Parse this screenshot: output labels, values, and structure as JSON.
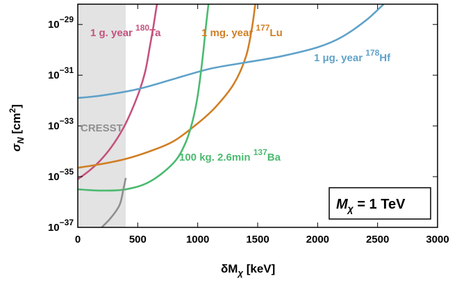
{
  "chart_data": {
    "type": "line",
    "xlabel": {
      "base": "δM",
      "sub": "χ",
      "unit": " [keV]"
    },
    "ylabel": {
      "base": "σ",
      "sub": "N",
      "unit": " [cm",
      "unit_sup": "2",
      "unit_end": "]"
    },
    "xlim": [
      0,
      3000
    ],
    "ylim_log10": [
      -37,
      -28.2
    ],
    "y_scale": "log",
    "x_ticks": [
      {
        "value": 0,
        "label": "0"
      },
      {
        "value": 500,
        "label": "500"
      },
      {
        "value": 1000,
        "label": "1000"
      },
      {
        "value": 1500,
        "label": "1500"
      },
      {
        "value": 2000,
        "label": "2000"
      },
      {
        "value": 2500,
        "label": "2500"
      },
      {
        "value": 3000,
        "label": "3000"
      }
    ],
    "y_ticks": [
      {
        "exp": -37,
        "base": "10",
        "sup": "−37"
      },
      {
        "exp": -35,
        "base": "10",
        "sup": "−35"
      },
      {
        "exp": -33,
        "base": "10",
        "sup": "−33"
      },
      {
        "exp": -31,
        "base": "10",
        "sup": "−31"
      },
      {
        "exp": -29,
        "base": "10",
        "sup": "−29"
      }
    ],
    "shaded_region": {
      "x": [
        0,
        400
      ],
      "color": "#e3e3e3"
    },
    "series": [
      {
        "key": "ta",
        "color": "#c4527e",
        "label": {
          "text": "1 g. year ",
          "sup": "180",
          "tail": "Ta"
        },
        "points": [
          [
            0,
            -35.1
          ],
          [
            100,
            -34.75
          ],
          [
            200,
            -34.3
          ],
          [
            300,
            -33.7
          ],
          [
            400,
            -32.9
          ],
          [
            500,
            -31.8
          ],
          [
            560,
            -30.9
          ],
          [
            600,
            -29.9
          ],
          [
            630,
            -29.1
          ],
          [
            650,
            -28.5
          ],
          [
            660,
            -28.2
          ]
        ]
      },
      {
        "key": "lu",
        "color": "#d07f25",
        "label": {
          "text": "1 mg. year ",
          "sup": "177",
          "tail": "Lu"
        },
        "points": [
          [
            0,
            -34.65
          ],
          [
            200,
            -34.5
          ],
          [
            400,
            -34.3
          ],
          [
            600,
            -34.0
          ],
          [
            800,
            -33.6
          ],
          [
            1000,
            -32.9
          ],
          [
            1150,
            -32.25
          ],
          [
            1300,
            -31.35
          ],
          [
            1400,
            -30.3
          ],
          [
            1450,
            -29.2
          ],
          [
            1480,
            -28.2
          ]
        ]
      },
      {
        "key": "hf",
        "color": "#5fa2c9",
        "label": {
          "text": "1 μg. year ",
          "sup": "178",
          "tail": "Hf"
        },
        "points": [
          [
            0,
            -31.9
          ],
          [
            200,
            -31.8
          ],
          [
            500,
            -31.55
          ],
          [
            800,
            -31.15
          ],
          [
            1100,
            -30.75
          ],
          [
            1400,
            -30.5
          ],
          [
            1700,
            -30.25
          ],
          [
            2000,
            -29.9
          ],
          [
            2200,
            -29.5
          ],
          [
            2400,
            -28.85
          ],
          [
            2550,
            -28.2
          ]
        ]
      },
      {
        "key": "ba",
        "color": "#4bba70",
        "label": {
          "text": "100 kg. 2.6min ",
          "sup": "137",
          "tail": "Ba"
        },
        "points": [
          [
            0,
            -35.5
          ],
          [
            200,
            -35.55
          ],
          [
            400,
            -35.5
          ],
          [
            600,
            -35.2
          ],
          [
            800,
            -34.45
          ],
          [
            900,
            -33.65
          ],
          [
            960,
            -32.75
          ],
          [
            1000,
            -31.8
          ],
          [
            1040,
            -30.35
          ],
          [
            1070,
            -29.0
          ],
          [
            1090,
            -28.2
          ]
        ]
      },
      {
        "key": "cresst",
        "color": "#8f8f8f",
        "label": {
          "text": "CRESST",
          "sup": "",
          "tail": ""
        },
        "points": [
          [
            200,
            -37.0
          ],
          [
            280,
            -36.6
          ],
          [
            350,
            -36.1
          ],
          [
            380,
            -35.5
          ],
          [
            400,
            -35.05
          ]
        ]
      }
    ],
    "annotation_box": {
      "base": "M",
      "sub": "χ",
      "text": " = 1 TeV"
    }
  }
}
